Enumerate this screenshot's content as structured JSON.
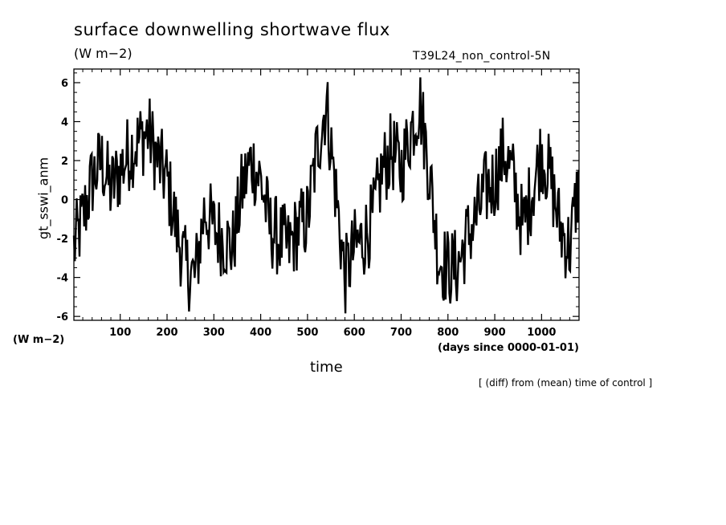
{
  "chart_data": {
    "type": "line",
    "title": "surface downwelling shortwave flux",
    "units": "(W m−2)",
    "run_label": "T39L24_non_control-5N",
    "ylabel": "gt_sswi_anm",
    "y_units": "(W m−2)",
    "xlabel": "time",
    "x_units": "(days since 0000-01-01)",
    "note": "[ (diff) from (mean) time of control ]",
    "xlim": [
      1,
      1080
    ],
    "ylim": [
      -6.2,
      6.7
    ],
    "x_ticks": [
      100,
      200,
      300,
      400,
      500,
      600,
      700,
      800,
      900,
      1000
    ],
    "y_ticks": [
      -6,
      -4,
      -2,
      0,
      2,
      4,
      6
    ],
    "grid": false,
    "line_color": "#000000",
    "series": [
      {
        "x": [
          1,
          20,
          40,
          60,
          80,
          100,
          120,
          140,
          160,
          180,
          200,
          220,
          240,
          260,
          280,
          300,
          320,
          340,
          360,
          380,
          400,
          420,
          440,
          460,
          480,
          500,
          520,
          540,
          560,
          580,
          600,
          620,
          640,
          660,
          680,
          700,
          720,
          740,
          760,
          780,
          800,
          820,
          840,
          860,
          880,
          900,
          920,
          940,
          960,
          980,
          1000,
          1020,
          1040,
          1060,
          1080
        ],
        "values": [
          -2.5,
          -1.0,
          1.0,
          2.0,
          0.5,
          1.5,
          2.5,
          3.0,
          3.5,
          2.0,
          1.0,
          -1.5,
          -3.5,
          -4.0,
          -0.5,
          -1.5,
          -2.0,
          -2.5,
          0.5,
          2.0,
          1.0,
          -1.5,
          -2.0,
          -2.5,
          -1.5,
          -1.0,
          2.5,
          5.0,
          0.5,
          -4.0,
          -2.5,
          -2.0,
          -1.0,
          1.5,
          2.5,
          1.5,
          3.5,
          5.0,
          1.5,
          -3.0,
          -3.5,
          -3.5,
          -2.0,
          -1.0,
          0.5,
          1.0,
          2.5,
          1.0,
          -1.5,
          0.5,
          2.5,
          1.0,
          -1.5,
          -2.5,
          1.0
        ]
      }
    ]
  }
}
